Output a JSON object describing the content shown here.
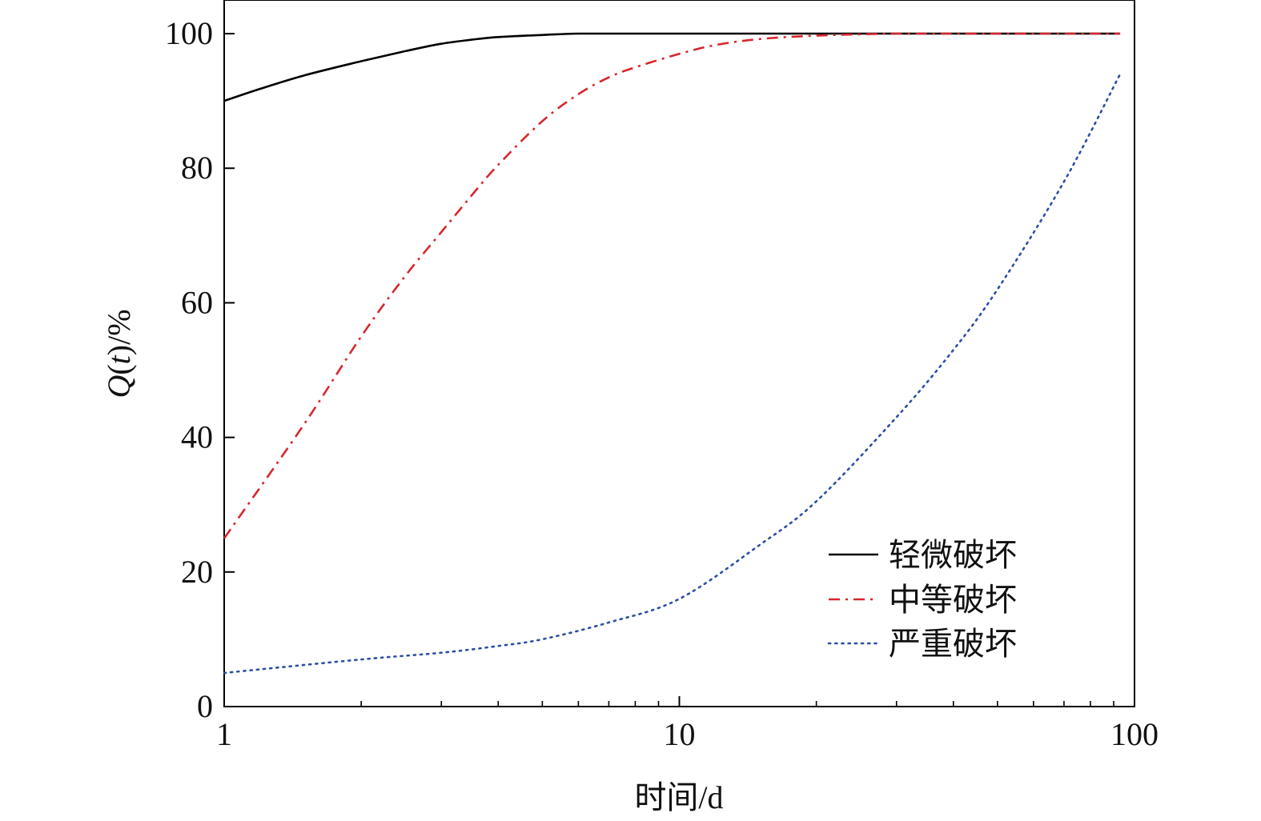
{
  "chart_data": {
    "type": "line",
    "title": "",
    "xlabel": "时间/d",
    "ylabel": "Q(t)/%",
    "ylabel_parts": {
      "italic_q": "Q",
      "open": "(",
      "italic_t": "t",
      "close": ")/%"
    },
    "xscale": "log",
    "xlim": [
      1,
      100
    ],
    "ylim": [
      0,
      105
    ],
    "xticks": [
      1,
      10,
      100
    ],
    "xtick_labels": [
      "1",
      "10",
      "100"
    ],
    "yticks": [
      0,
      20,
      40,
      60,
      80,
      100
    ],
    "ytick_labels": [
      "0",
      "20",
      "40",
      "60",
      "80",
      "100"
    ],
    "grid": false,
    "legend_position": "bottom-right",
    "series": [
      {
        "name": "轻微破坏",
        "color": "#000000",
        "style": "solid",
        "x": [
          1,
          1.2,
          1.5,
          2,
          2.5,
          3,
          3.5,
          4,
          5,
          6,
          8,
          10,
          20,
          50,
          93
        ],
        "y": [
          90,
          91.8,
          93.8,
          95.9,
          97.4,
          98.5,
          99.1,
          99.5,
          99.8,
          100,
          100,
          100,
          100,
          100,
          100
        ]
      },
      {
        "name": "中等破坏",
        "color": "#d7262e",
        "style": "dashdot",
        "x": [
          1,
          1.5,
          2,
          2.5,
          3,
          3.5,
          4,
          5,
          6,
          7,
          8,
          10,
          12,
          15,
          20,
          30,
          50,
          93
        ],
        "y": [
          25,
          42,
          55,
          64,
          70.5,
          76,
          80.5,
          87,
          91,
          93.5,
          95,
          97,
          98.3,
          99.2,
          99.7,
          100,
          100,
          100
        ]
      },
      {
        "name": "严重破坏",
        "color": "#2d4fa3",
        "style": "dotted",
        "x": [
          1,
          2,
          3,
          4,
          5,
          7,
          10,
          15,
          20,
          30,
          40,
          50,
          70,
          93
        ],
        "y": [
          5,
          7,
          8,
          9,
          10,
          12.5,
          16,
          24,
          30.5,
          43,
          53,
          62,
          78,
          94
        ]
      }
    ]
  }
}
